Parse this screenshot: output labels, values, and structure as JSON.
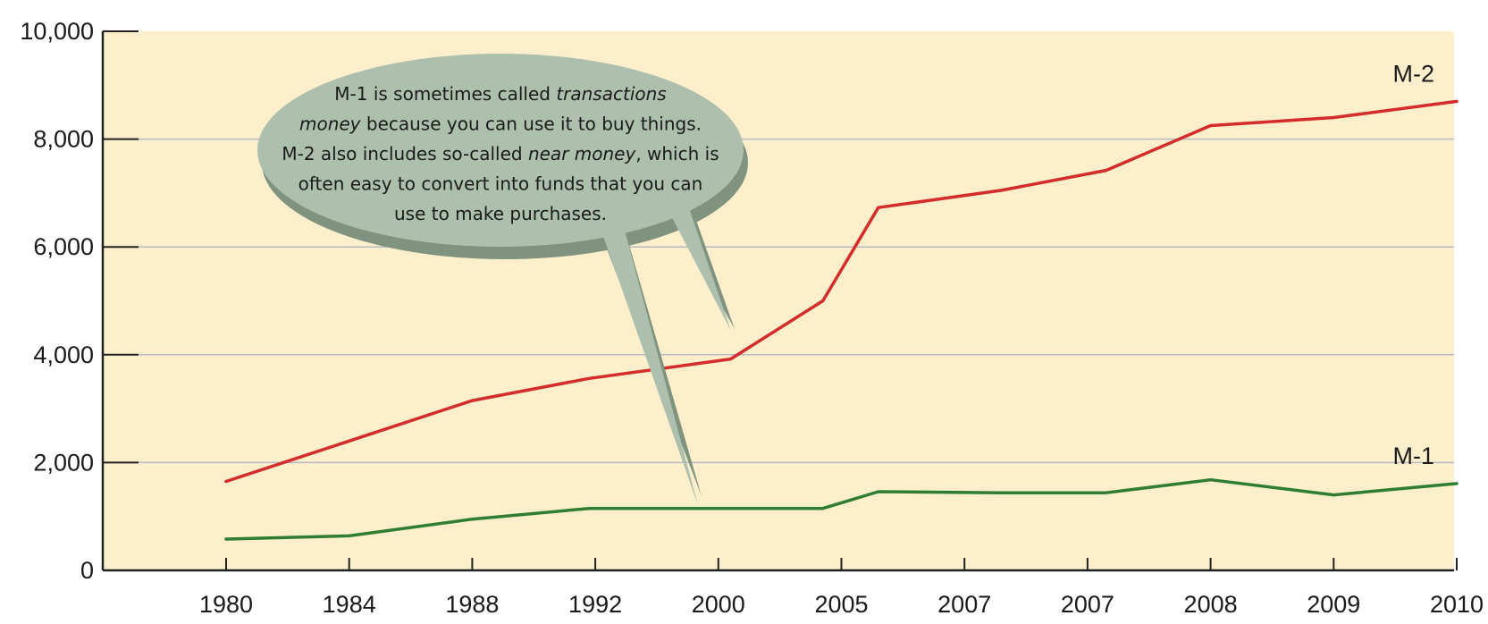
{
  "chart_data": {
    "type": "line",
    "title": "",
    "xlabel": "",
    "ylabel": "",
    "categories": [
      "1980",
      "1984",
      "1988",
      "1992",
      "2000",
      "2005",
      "2007",
      "2007",
      "2008",
      "2009",
      "2010"
    ],
    "ylim": [
      0,
      10000
    ],
    "yticks": [
      0,
      2000,
      4000,
      6000,
      8000,
      10000
    ],
    "ytick_labels": [
      "0",
      "2,000",
      "4,000",
      "6,000",
      "8,000",
      "10,000"
    ],
    "grid": true,
    "plot_background": "#fdefcc",
    "series": [
      {
        "name": "M-2",
        "color": "#d42b2b",
        "x": [
          1980,
          1984,
          1988,
          1991,
          1997,
          2004,
          2005.35,
          2006.4,
          2007.1,
          2008,
          2009,
          2010
        ],
        "values": [
          1650,
          2400,
          3150,
          3560,
          3920,
          5000,
          6730,
          7050,
          7420,
          8250,
          8400,
          8700
        ]
      },
      {
        "name": "M-1",
        "color": "#2e7d32",
        "x": [
          1980,
          1984,
          1988,
          1991,
          1997,
          2004,
          2005.35,
          2006.4,
          2007.1,
          2008,
          2009,
          2010
        ],
        "values": [
          580,
          640,
          950,
          1150,
          1150,
          1150,
          1460,
          1440,
          1440,
          1680,
          1400,
          1610
        ]
      }
    ],
    "annotation": {
      "segments": [
        [
          {
            "t": "M-1 is sometimes called ",
            "i": false
          },
          {
            "t": "transactions",
            "i": true
          }
        ],
        [
          {
            "t": "money",
            "i": true
          },
          {
            "t": " because you can use it to buy things.",
            "i": false
          }
        ],
        [
          {
            "t": "M-2 also includes so-called ",
            "i": false
          },
          {
            "t": "near money",
            "i": true
          },
          {
            "t": ", which is",
            "i": false
          }
        ],
        [
          {
            "t": "often easy to convert into funds that you can",
            "i": false
          }
        ],
        [
          {
            "t": "use to make purchases.",
            "i": false
          }
        ]
      ],
      "fill": "#adbfad",
      "shadow": "#7f937f"
    }
  }
}
